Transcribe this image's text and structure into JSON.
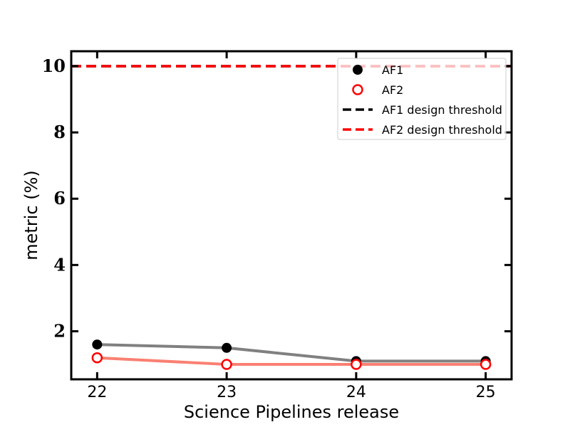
{
  "chart_data": {
    "type": "line",
    "title": "",
    "xlabel": "Science Pipelines release",
    "ylabel": "metric (%)",
    "x": [
      22,
      23,
      24,
      25
    ],
    "xlim": [
      21.8,
      25.2
    ],
    "ylim": [
      0.55,
      10.45
    ],
    "xticks": [
      22,
      23,
      24,
      25
    ],
    "yticks": [
      2,
      4,
      6,
      8,
      10
    ],
    "grid": false,
    "legend_position": "top-right",
    "series": [
      {
        "name": "AF1",
        "values": [
          1.6,
          1.5,
          1.1,
          1.1
        ],
        "line_color": "#808080",
        "marker_color": "#000000",
        "marker": "filled-circle"
      },
      {
        "name": "AF2",
        "values": [
          1.2,
          1.0,
          1.0,
          1.0
        ],
        "line_color": "#fa8072",
        "marker_color": "#ff0000",
        "marker": "open-circle"
      }
    ],
    "thresholds": [
      {
        "name": "AF1 design threshold",
        "value": 10,
        "color": "#000000",
        "style": "dashed"
      },
      {
        "name": "AF2 design threshold",
        "value": 10,
        "color": "#ff0000",
        "style": "dashed"
      }
    ]
  }
}
